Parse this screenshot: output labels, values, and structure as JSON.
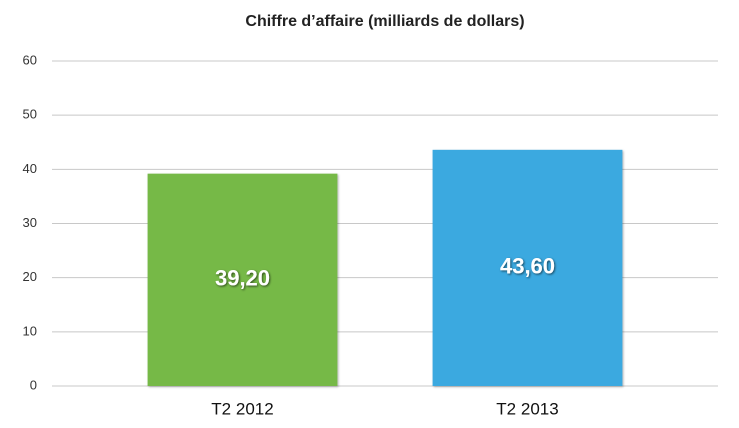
{
  "chart_data": {
    "type": "bar",
    "title": "Chiffre d’affaire (milliards de dollars)",
    "categories": [
      "T2 2012",
      "T2 2013"
    ],
    "values": [
      39.2,
      43.6
    ],
    "value_labels": [
      "39,20",
      "43,60"
    ],
    "colors": [
      "#76b947",
      "#3aa9e0"
    ],
    "ylim": [
      0,
      60
    ],
    "yticks": [
      0,
      10,
      20,
      30,
      40,
      50,
      60
    ],
    "grid": true
  }
}
